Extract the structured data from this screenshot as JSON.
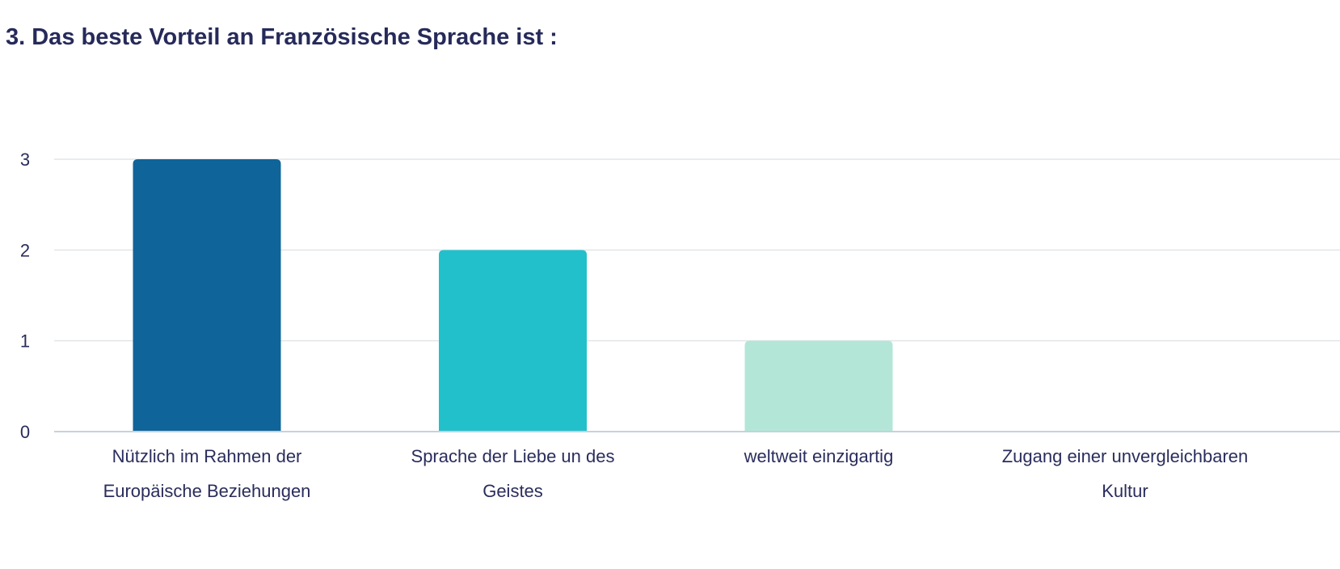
{
  "chart_data": {
    "type": "bar",
    "title": "3. Das beste Vorteil an Französische Sprache ist :",
    "categories": [
      [
        "Nützlich im Rahmen der",
        "Europäische Beziehungen"
      ],
      [
        "Sprache der Liebe un des",
        "Geistes"
      ],
      [
        "weltweit einzigartig"
      ],
      [
        "Zugang einer unvergleichbaren",
        "Kultur"
      ]
    ],
    "values": [
      3,
      2,
      1,
      0
    ],
    "colors": [
      "#0f6499",
      "#21c0cb",
      "#b3e6d6",
      "#b3e6d6"
    ],
    "ylim": [
      0,
      3
    ],
    "yticks": [
      0,
      1,
      2,
      3
    ],
    "grid": true,
    "xlabel": "",
    "ylabel": ""
  }
}
